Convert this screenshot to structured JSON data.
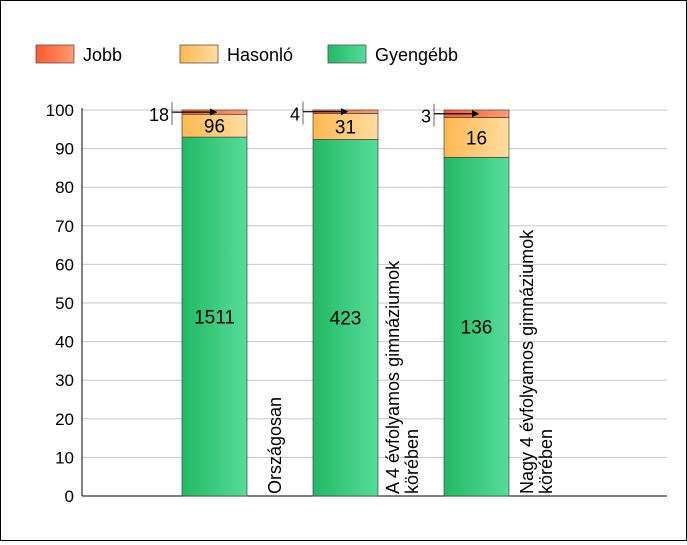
{
  "chart_data": {
    "type": "bar",
    "stacked": "percent",
    "title": "",
    "xlabel": "",
    "ylabel": "",
    "ylim": [
      0,
      100
    ],
    "yticks": [
      0,
      10,
      20,
      30,
      40,
      50,
      60,
      70,
      80,
      90,
      100
    ],
    "grid": true,
    "legend_position": "top-left",
    "categories": [
      [
        "Országosan"
      ],
      [
        "A 4 évfolyamos gimnáziumok",
        "körében"
      ],
      [
        "Nagy 4 évfolyamos gimnáziumok",
        "körében"
      ]
    ],
    "series": [
      {
        "name": "Gyengébb",
        "color": "#2ecc7a",
        "values": [
          1511,
          423,
          136
        ]
      },
      {
        "name": "Hasonló",
        "color": "#ffc978",
        "values": [
          96,
          31,
          16
        ]
      },
      {
        "name": "Jobb",
        "color": "#ff7a4a",
        "values": [
          18,
          4,
          3
        ]
      }
    ],
    "legend_order": [
      "Jobb",
      "Hasonló",
      "Gyengébb"
    ]
  }
}
